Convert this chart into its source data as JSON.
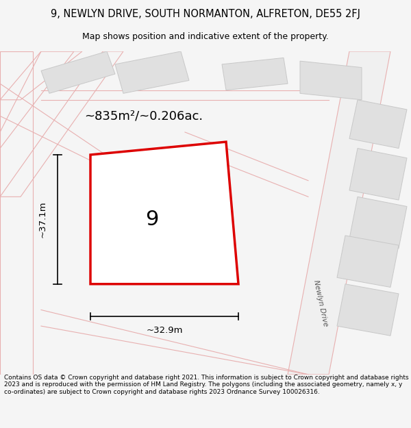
{
  "title_line1": "9, NEWLYN DRIVE, SOUTH NORMANTON, ALFRETON, DE55 2FJ",
  "title_line2": "Map shows position and indicative extent of the property.",
  "area_text": "~835m²/~0.206ac.",
  "width_label": "~32.9m",
  "height_label": "~37.1m",
  "plot_number": "9",
  "footer_text": "Contains OS data © Crown copyright and database right 2021. This information is subject to Crown copyright and database rights 2023 and is reproduced with the permission of HM Land Registry. The polygons (including the associated geometry, namely x, y co-ordinates) are subject to Crown copyright and database rights 2023 Ordnance Survey 100026316.",
  "bg_color": "#f5f5f5",
  "map_bg": "#ffffff",
  "plot_fill": "#ffffff",
  "plot_edge": "#dd0000",
  "road_outline_color": "#e8b0b0",
  "building_fill": "#e0e0e0",
  "building_edge": "#cccccc",
  "road_label_color": "#555555",
  "dim_color": "#000000"
}
